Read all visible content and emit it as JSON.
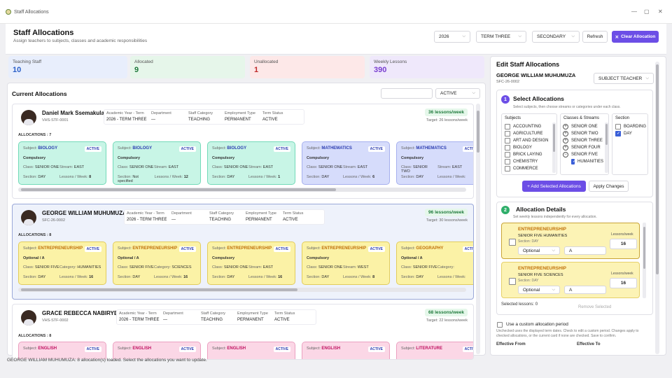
{
  "window": {
    "title": "Staff Allocations"
  },
  "header": {
    "title": "Staff Allocations",
    "subtitle": "Assign teachers to subjects, classes and academic responsibilities",
    "year": "2026",
    "term": "TERM THREE",
    "level": "SECONDARY",
    "refresh_label": "Refresh",
    "clear_label": "Clear Allocation"
  },
  "stats": [
    {
      "label": "Teaching Staff",
      "value": "10",
      "color": "#2a5fc8",
      "bg": "#e8eefc"
    },
    {
      "label": "Allocated",
      "value": "9",
      "color": "#1f7a3c",
      "bg": "#e6f6ea"
    },
    {
      "label": "Unallocated",
      "value": "1",
      "color": "#c02a2a",
      "bg": "#fde8e8"
    },
    {
      "label": "Weekly Lessons",
      "value": "390",
      "color": "#7a3fd0",
      "bg": "#efe8fb"
    }
  ],
  "current": {
    "title": "Current Allocations",
    "search_placeholder": "",
    "filter": "ACTIVE"
  },
  "meta_keys": {
    "year_term": "Academic Year - Term",
    "department": "Department",
    "category": "Staff Category",
    "employment": "Employment Type",
    "term_status": "Term Status"
  },
  "staff": [
    {
      "name": "Daniel Mark Ssemakula",
      "code": "VHS-STF-0001",
      "year_term": "2026  -  TERM THREE",
      "department": "—",
      "category": "TEACHING",
      "employment": "PERMANENT",
      "term_status": "ACTIVE",
      "lessons": "36 lessons/week",
      "target": "Target:  26  lessons/week",
      "allocations": "ALLOCATIONS  :  7"
    },
    {
      "name": "GEORGE WILLIAM MUHUMUZA",
      "code": "SFC-26-0002",
      "year_term": "2026  -  TERM THREE",
      "department": "—",
      "category": "TEACHING",
      "employment": "PERMANENT",
      "term_status": "ACTIVE",
      "lessons": "96 lessons/week",
      "target": "Target:  30  lessons/week",
      "allocations": "ALLOCATIONS  :  8"
    },
    {
      "name": "GRACE REBECCA NABIRYE",
      "code": "VHS-STF-0002",
      "year_term": "2026  -  TERM THREE",
      "department": "—",
      "category": "TEACHING",
      "employment": "PERMANENT",
      "term_status": "ACTIVE",
      "lessons": "68 lessons/week",
      "target": "Target:  22  lessons/week",
      "allocations": "ALLOCATIONS  :  8"
    }
  ],
  "card_keys": {
    "subject": "Subject:",
    "class": "Class:",
    "stream": "Stream:",
    "category": "Category:",
    "section": "Section:",
    "lessons": "Lessons / Week:"
  },
  "cards_row1": [
    {
      "subject": "BIOLOGY",
      "badge": "ACTIVE",
      "type": "Compulsory",
      "class": "SENIOR ONE",
      "k2": "Stream:",
      "v2": "EAST",
      "section": "DAY",
      "lessons": "8"
    },
    {
      "subject": "BIOLOGY",
      "badge": "ACTIVE",
      "type": "Compulsory",
      "class": "SENIOR ONE",
      "k2": "Stream:",
      "v2": "EAST",
      "section": "Not specified",
      "lessons": "12"
    },
    {
      "subject": "BIOLOGY",
      "badge": "ACTIVE",
      "type": "Compulsory",
      "class": "SENIOR ONE",
      "k2": "Stream:",
      "v2": "EAST",
      "section": "DAY",
      "lessons": "1"
    },
    {
      "subject": "MATHEMATICS",
      "badge": "ACTIVE",
      "type": "Compulsory",
      "class": "SENIOR ONE",
      "k2": "Stream:",
      "v2": "EAST",
      "section": "DAY",
      "lessons": "6"
    },
    {
      "subject": "MATHEMATICS",
      "badge": "ACTIVE",
      "type": "Compulsory",
      "class": "SENIOR TWO",
      "k2": "Stream:",
      "v2": "EAST",
      "section": "DAY",
      "lessons": ""
    }
  ],
  "cards_row2": [
    {
      "subject": "ENTREPRENEURSHIP",
      "badge": "ACTIVE",
      "type": "Optional / A",
      "class": "SENIOR FIVE",
      "k2": "Category:",
      "v2": "HUMANITIES",
      "section": "DAY",
      "lessons": "16"
    },
    {
      "subject": "ENTREPRENEURSHIP",
      "badge": "ACTIVE",
      "type": "Optional / A",
      "class": "SENIOR FIVE",
      "k2": "Category:",
      "v2": "SCIENCES",
      "section": "DAY",
      "lessons": "16"
    },
    {
      "subject": "ENTREPRENEURSHIP",
      "badge": "ACTIVE",
      "type": "Compulsory",
      "class": "SENIOR ONE",
      "k2": "Stream:",
      "v2": "EAST",
      "section": "DAY",
      "lessons": "16"
    },
    {
      "subject": "ENTREPRENEURSHIP",
      "badge": "ACTIVE",
      "type": "Compulsory",
      "class": "SENIOR ONE",
      "k2": "Stream:",
      "v2": "WEST",
      "section": "DAY",
      "lessons": "8"
    },
    {
      "subject": "GEOGRAPHY",
      "badge": "ACTIVE",
      "type": "Optional / A",
      "class": "SENIOR FIVE",
      "k2": "Category:",
      "v2": "",
      "section": "DAY",
      "lessons": ""
    }
  ],
  "cards_row3": [
    {
      "subject": "ENGLISH",
      "badge": "ACTIVE"
    },
    {
      "subject": "ENGLISH",
      "badge": "ACTIVE"
    },
    {
      "subject": "ENGLISH",
      "badge": "ACTIVE"
    },
    {
      "subject": "ENGLISH",
      "badge": "ACTIVE"
    },
    {
      "subject": "LITERATURE",
      "badge": "ACTIVE"
    }
  ],
  "edit": {
    "title": "Edit Staff Allocations",
    "staff_name": "GEORGE WILLIAM MUHUMUZA",
    "staff_code": "SFC-26-0002",
    "role": "SUBJECT TEACHER",
    "sec1_title": "Select Allocations",
    "sec1_hint": "Select subjects, then choose streams or categories under each class.",
    "subjects_label": "Subjects",
    "subjects": [
      "ACCOUNTING",
      "AGRICULTURE",
      "ART AND DESIGN",
      "BIOLOGY",
      "BRICK LAYING",
      "CHEMISTRY",
      "COMMERCE"
    ],
    "classes_label": "Classes & Streams",
    "classes": [
      {
        "label": "SENIOR ONE",
        "sign": "+"
      },
      {
        "label": "SENIOR TWO",
        "sign": "+"
      },
      {
        "label": "SENIOR THREE",
        "sign": "+"
      },
      {
        "label": "SENIOR FOUR",
        "sign": "+"
      },
      {
        "label": "SENIOR FIVE",
        "sign": "−"
      }
    ],
    "class_child": "HUMANITIES",
    "section_label": "Section",
    "sections": [
      {
        "label": "BOARDING",
        "on": false
      },
      {
        "label": "DAY",
        "on": true
      }
    ],
    "add_label": "+ Add Selected Allocations",
    "apply_label": "Apply Changes",
    "sec2_title": "Allocation Details",
    "sec2_hint": "Set weekly lessons independently for every allocation.",
    "details": [
      {
        "subject": "ENTREPRENEURSHIP",
        "class": "SENIOR FIVE HUMANITIES",
        "section": "Section:  DAY",
        "type": "Optional",
        "option": "A",
        "lessons_label": "Lessons/week",
        "lessons": "16"
      },
      {
        "subject": "ENTREPRENEURSHIP",
        "class": "SENIOR FIVE SCIENCES",
        "section": "Section:  DAY",
        "type": "Optional",
        "option": "A",
        "lessons_label": "Lessons/week",
        "lessons": "16"
      }
    ],
    "selected_lessons": "Selected lessons:  0",
    "remove_label": "Remove Selected",
    "custom_label": "Use a custom allocation period",
    "custom_hint": "Unchecked uses the displayed term dates. Check to edit a custom period. Changes apply to checked allocations, or the current card if none are checked. Save to confirm.",
    "from_label": "Effective From",
    "to_label": "Effective To"
  },
  "status": "GEORGE WILLIAM MUHUMUZA: 8 allocation(s) loaded. Select the allocations you want to update.",
  "colors": {
    "accent": "#6c4ee6",
    "section_num": "#6c4ee6",
    "section_num2": "#2fae6a"
  }
}
